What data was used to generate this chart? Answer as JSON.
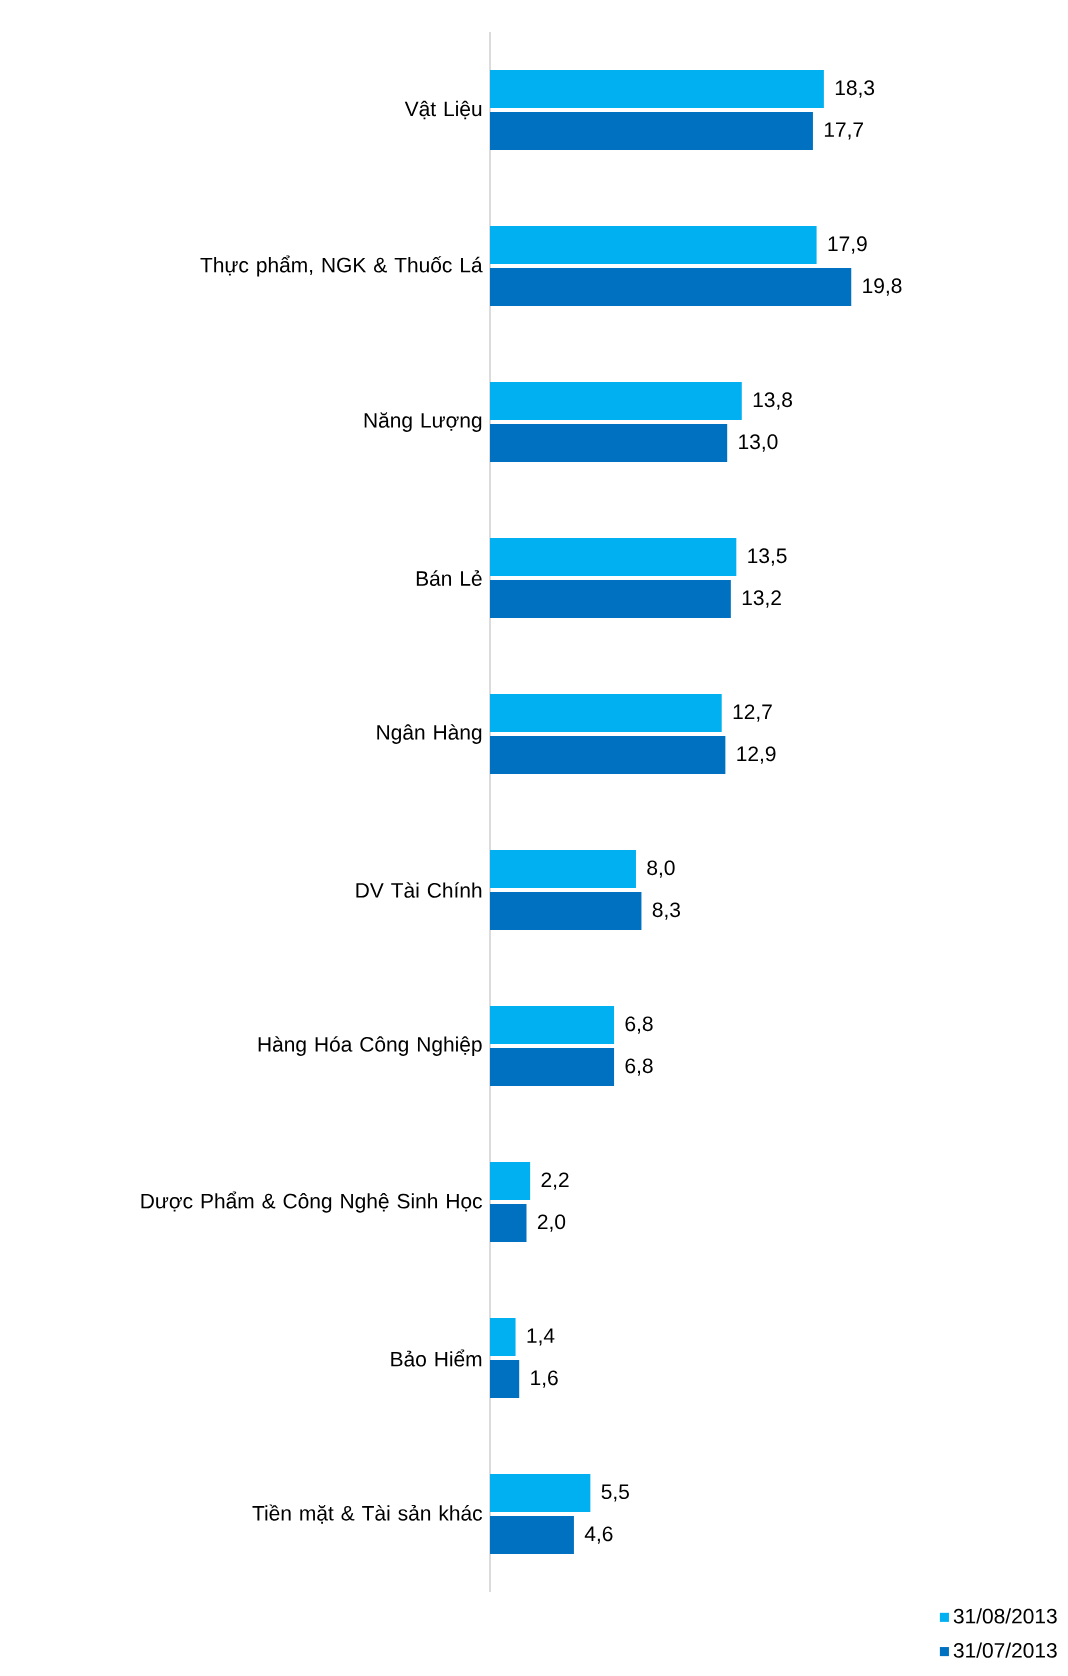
{
  "chart_data": {
    "type": "bar",
    "orientation": "horizontal",
    "data_labels": true,
    "legend": "bottom right",
    "categories": [
      "Vật Liệu",
      "Thực phẩm, NGK & Thuốc Lá",
      "Năng Lượng",
      "Bán Lẻ",
      "Ngân Hàng",
      "DV Tài Chính",
      "Hàng Hóa Công Nghiệp",
      "Dược Phẩm & Công Nghệ Sinh Học",
      "Bảo Hiểm",
      "Tiền mặt & Tài sản khác"
    ],
    "series": [
      {
        "name": "31/08/2013",
        "color": "#00b0f0",
        "values": [
          18.3,
          17.9,
          13.8,
          13.5,
          12.7,
          8.0,
          6.8,
          2.2,
          1.4,
          5.5
        ],
        "value_labels": [
          "18,3",
          "17,9",
          "13,8",
          "13,5",
          "12,7",
          "8,0",
          "6,8",
          "2,2",
          "1,4",
          "5,5"
        ]
      },
      {
        "name": "31/07/2013",
        "color": "#0070c0",
        "values": [
          17.7,
          19.8,
          13.0,
          13.2,
          12.9,
          8.3,
          6.8,
          2.0,
          1.6,
          4.6
        ],
        "value_labels": [
          "17,7",
          "19,8",
          "13,0",
          "13,2",
          "12,9",
          "8,3",
          "6,8",
          "2,0",
          "1,6",
          "4,6"
        ]
      }
    ]
  }
}
